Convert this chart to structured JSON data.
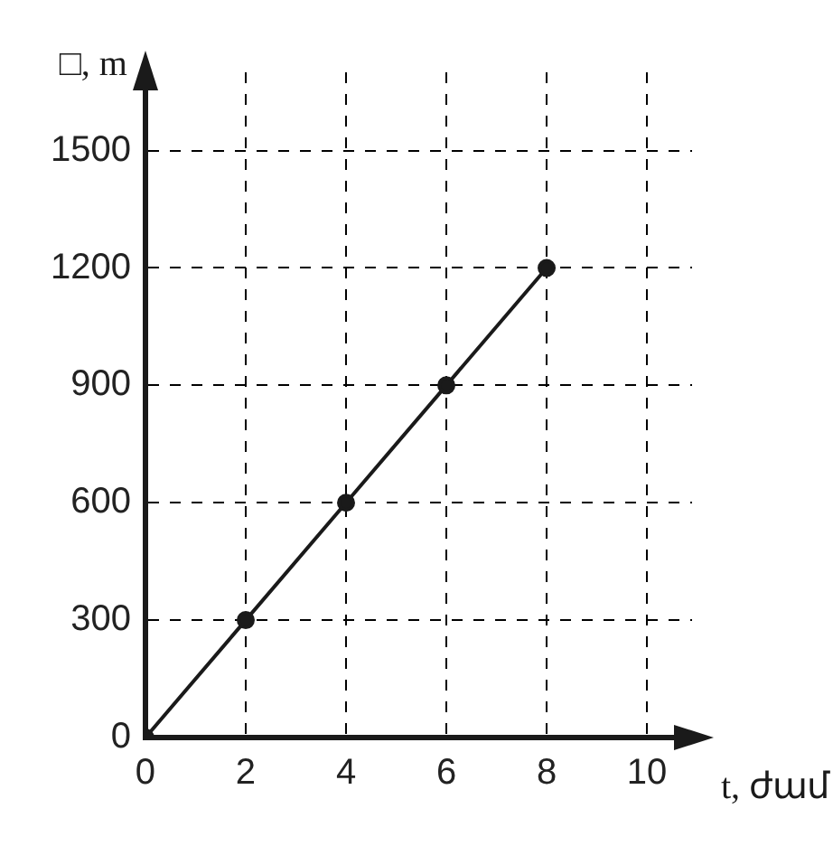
{
  "chart_data": {
    "type": "line",
    "xlabel": "t, ժամ",
    "ylabel": "□, m",
    "x": [
      0,
      2,
      4,
      6,
      8
    ],
    "series": [
      {
        "color": "#1a1a1a",
        "values": [
          0,
          300,
          600,
          900,
          1200
        ]
      }
    ],
    "xlim": [
      0,
      10.9
    ],
    "ylim": [
      0,
      1700
    ],
    "xticks": [
      0,
      2,
      4,
      6,
      8,
      10
    ],
    "yticks": [
      0,
      300,
      600,
      900,
      1200,
      1500
    ],
    "grid": true,
    "legend": false,
    "marker": "circle",
    "line_style": "solid"
  }
}
